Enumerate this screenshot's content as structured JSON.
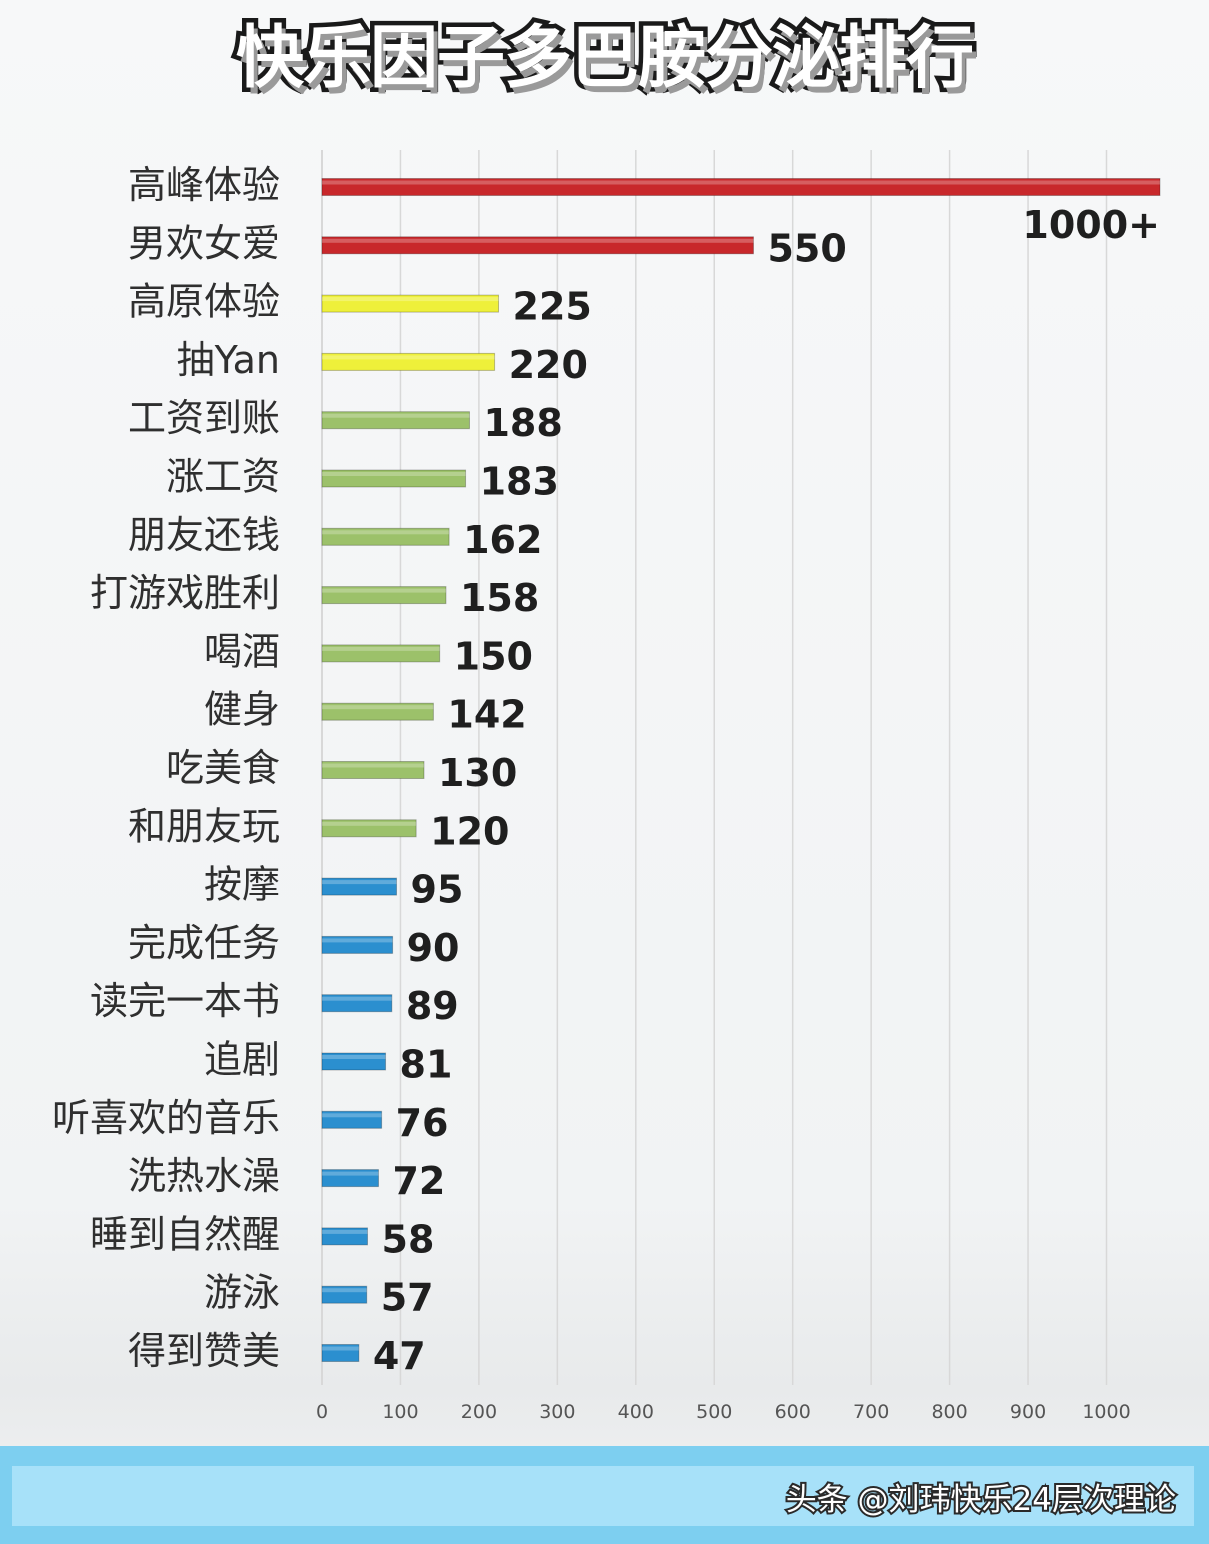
{
  "title": "快乐因子多巴胺分泌排行",
  "watermark": "头条 @刘玮快乐24层次理论",
  "colors": {
    "red": "#c8282b",
    "yellow": "#eef03a",
    "green": "#9cc16a",
    "blue": "#2b8fcf",
    "grid": "#d8d8d8"
  },
  "chart_data": {
    "type": "bar",
    "orientation": "horizontal",
    "title": "快乐因子多巴胺分泌排行",
    "xlabel": "",
    "ylabel": "",
    "xlim": [
      0,
      1000
    ],
    "ticks": [
      "0",
      "100",
      "200",
      "300",
      "400",
      "500",
      "600",
      "700",
      "800",
      "900",
      "1000"
    ],
    "grid": true,
    "categories": [
      "高峰体验",
      "男欢女爱",
      "高原体验",
      "抽Yan",
      "工资到账",
      "涨工资",
      "朋友还钱",
      "打游戏胜利",
      "喝酒",
      "健身",
      "吃美食",
      "和朋友玩",
      "按摩",
      "完成任务",
      "读完一本书",
      "追剧",
      "听喜欢的音乐",
      "洗热水澡",
      "睡到自然醒",
      "游泳",
      "得到赞美"
    ],
    "values": [
      1000,
      550,
      225,
      220,
      188,
      183,
      162,
      158,
      150,
      142,
      130,
      120,
      95,
      90,
      89,
      81,
      76,
      72,
      58,
      57,
      47
    ],
    "value_labels": [
      "1000+",
      "550",
      "225",
      "220",
      "188",
      "183",
      "162",
      "158",
      "150",
      "142",
      "130",
      "120",
      "95",
      "90",
      "89",
      "81",
      "76",
      "72",
      "58",
      "57",
      "47"
    ],
    "bar_colors": [
      "red",
      "red",
      "yellow",
      "yellow",
      "green",
      "green",
      "green",
      "green",
      "green",
      "green",
      "green",
      "green",
      "blue",
      "blue",
      "blue",
      "blue",
      "blue",
      "blue",
      "blue",
      "blue",
      "blue"
    ]
  }
}
